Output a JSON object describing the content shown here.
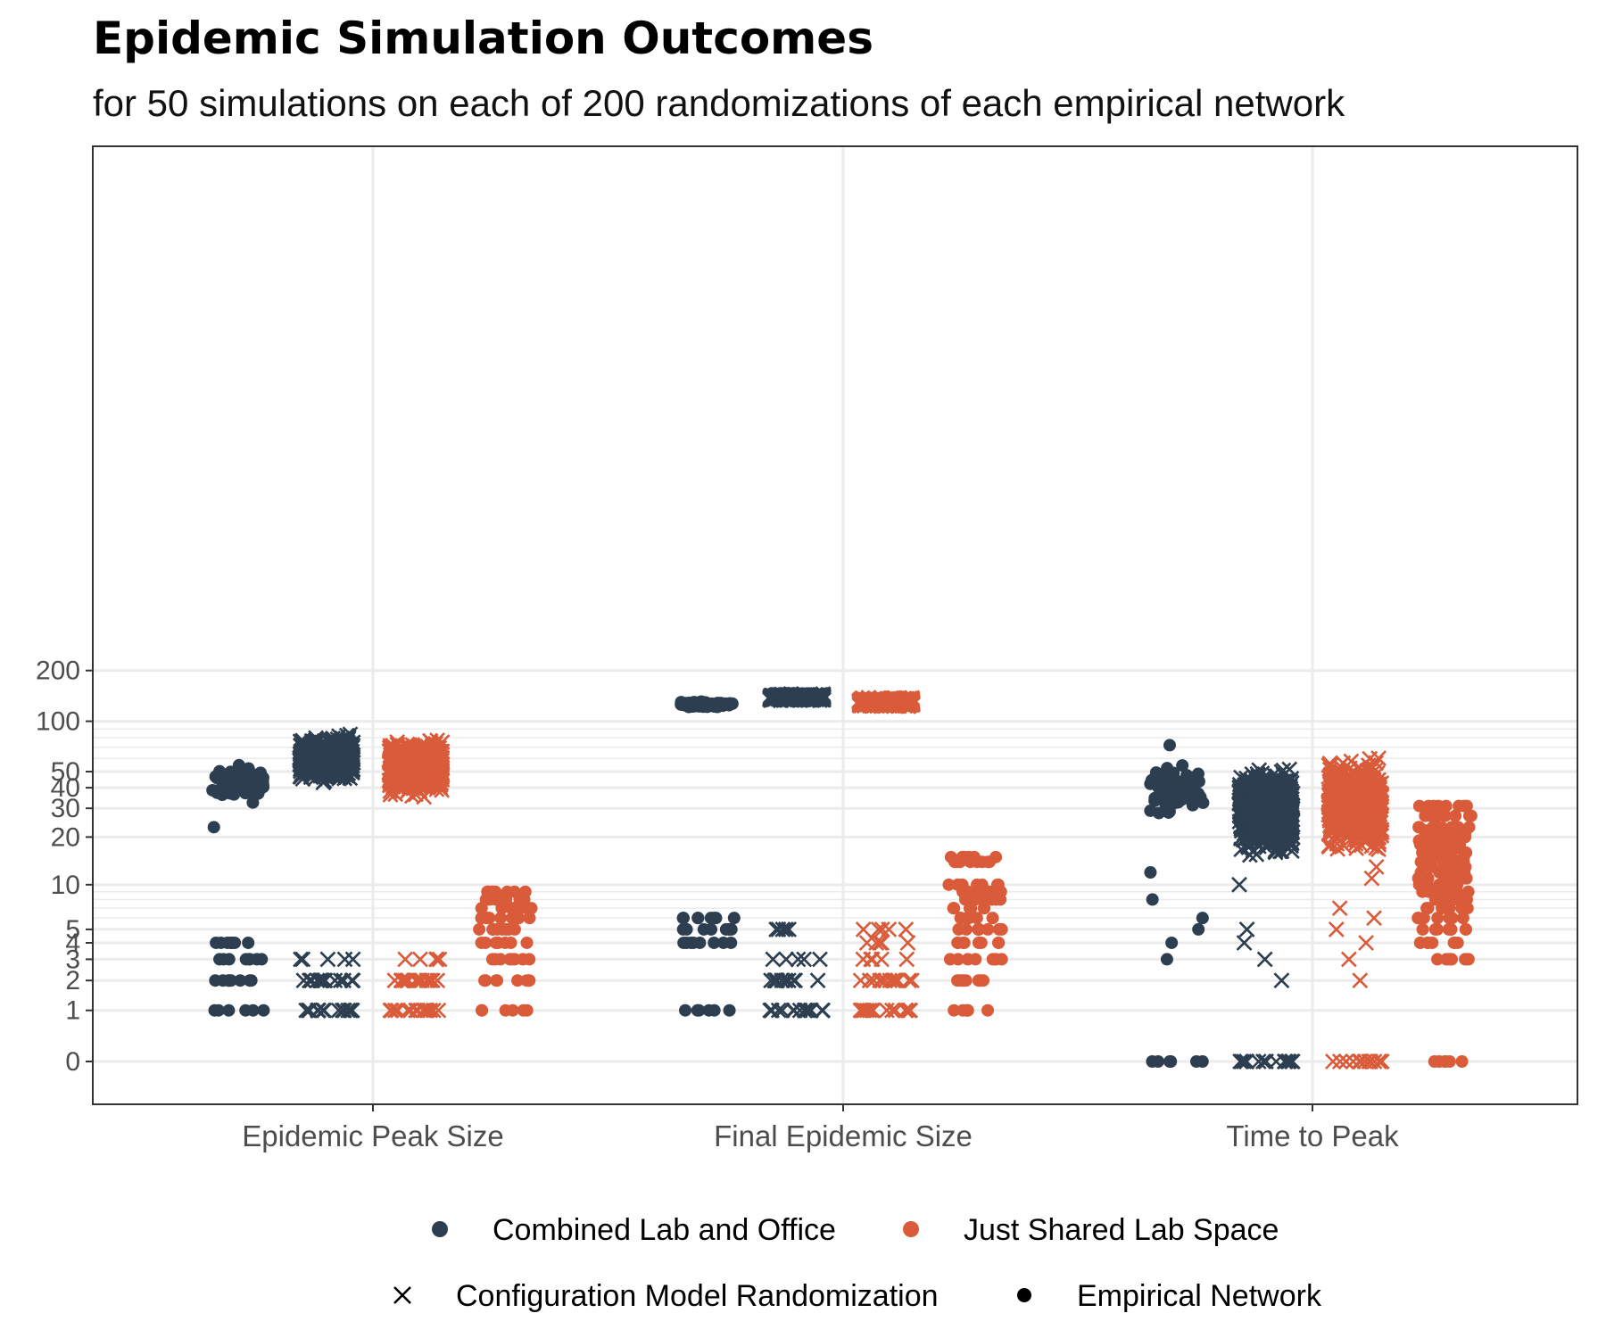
{
  "chart_data": {
    "type": "scatter",
    "title": "Epidemic Simulation Outcomes",
    "subtitle": "for 50 simulations on each of 200 randomizations of each empirical network",
    "xlabel": "",
    "ylabel": "",
    "y_scale": "pseudo-log",
    "ylim": [
      0,
      200
    ],
    "y_ticks": [
      0,
      1,
      2,
      3,
      4,
      5,
      10,
      20,
      30,
      40,
      50,
      100,
      200
    ],
    "categories": [
      "Epidemic Peak Size",
      "Final Epidemic Size",
      "Time to Peak"
    ],
    "grid": true,
    "legend_position": "bottom",
    "colors": {
      "Combined Lab and Office": "#2c3e50",
      "Just Shared Lab Space": "#d95b3a"
    },
    "legend": {
      "color_entries": [
        "Combined Lab and Office",
        "Just Shared Lab Space"
      ],
      "shape_entries": [
        {
          "label": "Configuration Model Randomization",
          "shape": "cross"
        },
        {
          "label": "Empirical Network",
          "shape": "dot"
        }
      ]
    },
    "series": [
      {
        "category": "Epidemic Peak Size",
        "network": "Combined Lab and Office",
        "model": "Empirical Network",
        "main_range": [
          31,
          57
        ],
        "outliers": [
          23
        ],
        "low_values": [
          1,
          2,
          3,
          4
        ]
      },
      {
        "category": "Epidemic Peak Size",
        "network": "Combined Lab and Office",
        "model": "Configuration Model Randomization",
        "main_range": [
          42,
          85
        ],
        "outliers": [],
        "low_values": [
          1,
          2,
          3
        ]
      },
      {
        "category": "Epidemic Peak Size",
        "network": "Just Shared Lab Space",
        "model": "Configuration Model Randomization",
        "main_range": [
          34,
          82
        ],
        "outliers": [],
        "low_values": [
          1,
          2,
          3
        ]
      },
      {
        "category": "Epidemic Peak Size",
        "network": "Just Shared Lab Space",
        "model": "Empirical Network",
        "main_range": [],
        "outliers": [],
        "low_values": [
          1,
          2,
          3,
          4,
          5,
          6,
          7,
          8,
          9
        ]
      },
      {
        "category": "Final Epidemic Size",
        "network": "Combined Lab and Office",
        "model": "Empirical Network",
        "main_range": [
          118,
          133
        ],
        "outliers": [],
        "low_values": [
          1,
          4,
          5,
          6
        ]
      },
      {
        "category": "Final Epidemic Size",
        "network": "Combined Lab and Office",
        "model": "Configuration Model Randomization",
        "main_range": [
          132,
          146
        ],
        "outliers": [],
        "low_values": [
          1,
          2,
          3,
          5
        ]
      },
      {
        "category": "Final Epidemic Size",
        "network": "Just Shared Lab Space",
        "model": "Configuration Model Randomization",
        "main_range": [
          121,
          139
        ],
        "outliers": [],
        "low_values": [
          1,
          2,
          3,
          4,
          5
        ]
      },
      {
        "category": "Final Epidemic Size",
        "network": "Just Shared Lab Space",
        "model": "Empirical Network",
        "main_range": [],
        "outliers": [],
        "low_values": [
          1,
          2,
          3,
          4,
          5,
          6,
          7,
          8,
          9,
          10,
          14,
          15
        ]
      },
      {
        "category": "Time to Peak",
        "network": "Combined Lab and Office",
        "model": "Empirical Network",
        "main_range": [
          24,
          60
        ],
        "outliers": [
          72,
          12,
          8,
          6,
          5,
          4,
          3
        ],
        "low_values": [
          0
        ]
      },
      {
        "category": "Time to Peak",
        "network": "Combined Lab and Office",
        "model": "Configuration Model Randomization",
        "main_range": [
          14,
          58
        ],
        "outliers": [
          10,
          5,
          4,
          3,
          2
        ],
        "low_values": [
          0
        ]
      },
      {
        "category": "Time to Peak",
        "network": "Just Shared Lab Space",
        "model": "Configuration Model Randomization",
        "main_range": [
          15,
          66
        ],
        "outliers": [
          13,
          11,
          7,
          6,
          5,
          4,
          3,
          2
        ],
        "low_values": [
          0
        ]
      },
      {
        "category": "Time to Peak",
        "network": "Just Shared Lab Space",
        "model": "Empirical Network",
        "main_range": [],
        "outliers": [],
        "low_values": [
          0,
          3,
          4,
          5,
          6,
          7,
          8,
          9,
          10,
          11,
          12,
          13,
          14,
          15,
          16,
          17,
          18,
          19,
          20,
          21,
          22,
          23,
          27,
          31
        ]
      }
    ]
  }
}
